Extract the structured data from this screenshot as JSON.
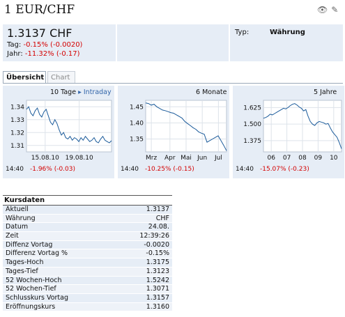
{
  "header": {
    "title": "1 EUR/CHF",
    "icons": [
      "eye-icon",
      "edit-icon"
    ]
  },
  "quote": {
    "price": "1.3137 CHF",
    "tag_label": "Tag:",
    "tag_value": "-0.15% (-0.0020)",
    "jahr_label": "Jahr:",
    "jahr_value": "-11.32% (-0.17)",
    "typ_label": "Typ:",
    "typ_value": "Währung"
  },
  "tabs": [
    {
      "label": "Übersicht",
      "active": true
    },
    {
      "label": "Chart",
      "active": false
    }
  ],
  "charts": [
    {
      "period": "10 Tage",
      "link": "▸ Intraday",
      "time": "14:40",
      "change": "-1.96% (-0.03)",
      "yticks": [
        "1.34",
        "1.33",
        "1.32",
        "1.31"
      ],
      "xticks": [
        "15.08.10",
        "19.08.10"
      ],
      "chart_data": {
        "type": "line",
        "ylim": [
          1.305,
          1.345
        ],
        "x": [
          0,
          1,
          2,
          3,
          4,
          5,
          6,
          7,
          8,
          9,
          10,
          11,
          12,
          13,
          14,
          15,
          16,
          17,
          18,
          19,
          20,
          21,
          22,
          23,
          24,
          25,
          26,
          27,
          28,
          29,
          30,
          31,
          32,
          33,
          34,
          35,
          36,
          37,
          38,
          39
        ],
        "values": [
          1.338,
          1.34,
          1.335,
          1.333,
          1.337,
          1.339,
          1.334,
          1.332,
          1.336,
          1.338,
          1.333,
          1.328,
          1.326,
          1.33,
          1.327,
          1.322,
          1.318,
          1.32,
          1.316,
          1.315,
          1.317,
          1.314,
          1.316,
          1.315,
          1.313,
          1.316,
          1.314,
          1.317,
          1.315,
          1.313,
          1.314,
          1.316,
          1.313,
          1.312,
          1.315,
          1.317,
          1.314,
          1.313,
          1.312,
          1.3137
        ]
      }
    },
    {
      "period": "6 Monate",
      "link": "",
      "time": "14:40",
      "change": "-10.25% (-0.15)",
      "yticks": [
        "1.45",
        "1.40",
        "1.35"
      ],
      "xticks": [
        "Mrz",
        "Apr",
        "Mai",
        "Jun",
        "Jul"
      ],
      "chart_data": {
        "type": "line",
        "ylim": [
          1.31,
          1.47
        ],
        "x": [
          0,
          1,
          2,
          3,
          4,
          5,
          6,
          7,
          8,
          9,
          10,
          11,
          12,
          13,
          14,
          15,
          16,
          17,
          18,
          19,
          20,
          21,
          22,
          23,
          24,
          25,
          26,
          27,
          28,
          29
        ],
        "values": [
          1.462,
          1.46,
          1.455,
          1.458,
          1.45,
          1.445,
          1.44,
          1.438,
          1.435,
          1.432,
          1.43,
          1.425,
          1.42,
          1.415,
          1.405,
          1.398,
          1.392,
          1.385,
          1.38,
          1.372,
          1.368,
          1.365,
          1.34,
          1.345,
          1.35,
          1.355,
          1.36,
          1.345,
          1.33,
          1.3137
        ]
      }
    },
    {
      "period": "5 Jahre",
      "link": "",
      "time": "14:40",
      "change": "-15.07% (-0.23)",
      "yticks": [
        "1.625",
        "1.500",
        "1.375"
      ],
      "xticks": [
        "06",
        "07",
        "08",
        "09",
        "10"
      ],
      "chart_data": {
        "type": "line",
        "ylim": [
          1.29,
          1.68
        ],
        "x": [
          0,
          1,
          2,
          3,
          4,
          5,
          6,
          7,
          8,
          9,
          10,
          11,
          12,
          13,
          14,
          15,
          16,
          17,
          18,
          19,
          20,
          21,
          22,
          23,
          24,
          25,
          26,
          27,
          28,
          29,
          30,
          31,
          32,
          33,
          34,
          35
        ],
        "values": [
          1.545,
          1.55,
          1.56,
          1.575,
          1.57,
          1.58,
          1.59,
          1.6,
          1.61,
          1.62,
          1.615,
          1.625,
          1.64,
          1.65,
          1.655,
          1.645,
          1.63,
          1.62,
          1.6,
          1.61,
          1.56,
          1.52,
          1.5,
          1.49,
          1.51,
          1.52,
          1.515,
          1.51,
          1.5,
          1.505,
          1.47,
          1.44,
          1.42,
          1.4,
          1.36,
          1.3137
        ]
      }
    }
  ],
  "kursdaten": {
    "title": "Kursdaten",
    "rows": [
      {
        "label": "Aktuell",
        "value": "1.3137"
      },
      {
        "label": "Währung",
        "value": "CHF"
      },
      {
        "label": "Datum",
        "value": "24.08."
      },
      {
        "label": "Zeit",
        "value": "12:39:26"
      },
      {
        "label": "Diffenz Vortag",
        "value": "-0.0020"
      },
      {
        "label": "Differenz Vortag %",
        "value": "-0.15%"
      },
      {
        "label": "Tages-Hoch",
        "value": "1.3175"
      },
      {
        "label": "Tages-Tief",
        "value": "1.3123"
      },
      {
        "label": "52 Wochen-Hoch",
        "value": "1.5242"
      },
      {
        "label": "52 Wochen-Tief",
        "value": "1.3071"
      },
      {
        "label": "Schlusskurs Vortag",
        "value": "1.3157"
      },
      {
        "label": "Eröffnungskurs",
        "value": "1.3160"
      }
    ]
  }
}
